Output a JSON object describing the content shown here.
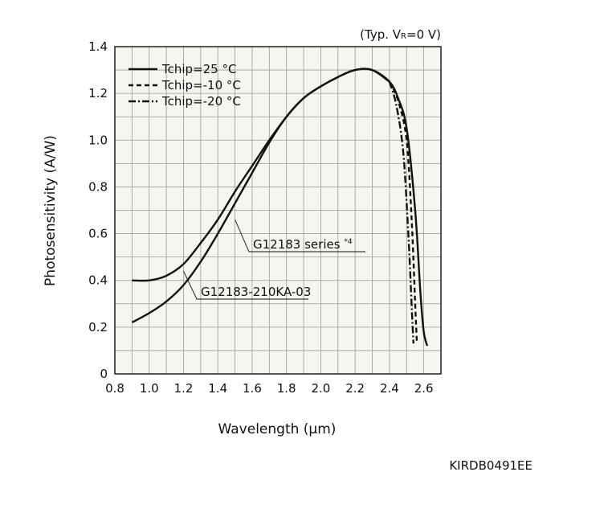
{
  "chart_data": {
    "type": "line",
    "condition": "(Typ. V",
    "condition_sub": "R",
    "condition_tail": "=0 V)",
    "xlabel": "Wavelength (µm)",
    "ylabel": "Photosensitivity (A/W)",
    "xlim": [
      0.8,
      2.7
    ],
    "ylim": [
      0,
      1.4
    ],
    "xticks": [
      "0.8",
      "1.0",
      "1.2",
      "1.4",
      "1.6",
      "1.8",
      "2.0",
      "2.2",
      "2.4",
      "2.6"
    ],
    "yticks": [
      "0",
      "0.2",
      "0.4",
      "0.6",
      "0.8",
      "1.0",
      "1.2",
      "1.4"
    ],
    "grid": true,
    "legend_position": "top-left",
    "legend": [
      {
        "label": "Tchip=25 °C",
        "style": "solid"
      },
      {
        "label": "Tchip=-10 °C",
        "style": "dashed"
      },
      {
        "label": "Tchip=-20 °C",
        "style": "dashdot"
      }
    ],
    "series": [
      {
        "name": "G12183 series",
        "superscript": "*4",
        "temperature": "Tchip=25 °C",
        "style": "solid",
        "x": [
          0.9,
          1.0,
          1.1,
          1.2,
          1.3,
          1.4,
          1.5,
          1.6,
          1.7,
          1.8,
          1.9,
          2.0,
          2.1,
          2.2,
          2.3,
          2.4,
          2.45,
          2.5,
          2.55,
          2.58,
          2.6,
          2.62
        ],
        "y": [
          0.4,
          0.4,
          0.42,
          0.47,
          0.56,
          0.66,
          0.78,
          0.89,
          1.0,
          1.1,
          1.18,
          1.23,
          1.27,
          1.3,
          1.3,
          1.25,
          1.18,
          1.05,
          0.7,
          0.35,
          0.18,
          0.12
        ]
      },
      {
        "name": "G12183-210KA-03",
        "temperature": "Tchip=25 °C",
        "style": "solid",
        "x": [
          0.9,
          1.0,
          1.1,
          1.2,
          1.3,
          1.4,
          1.5,
          1.6,
          1.7,
          1.8,
          1.9,
          2.0,
          2.1,
          2.2,
          2.3,
          2.4
        ],
        "y": [
          0.22,
          0.26,
          0.31,
          0.38,
          0.48,
          0.6,
          0.73,
          0.86,
          0.99,
          1.1,
          1.18,
          1.23,
          1.27,
          1.3,
          1.3,
          1.25
        ]
      },
      {
        "name": "",
        "temperature": "Tchip=-10 °C",
        "style": "dashed",
        "x": [
          2.4,
          2.45,
          2.5,
          2.53,
          2.55,
          2.56
        ],
        "y": [
          1.25,
          1.17,
          1.0,
          0.65,
          0.3,
          0.13
        ]
      },
      {
        "name": "",
        "temperature": "Tchip=-20 °C",
        "style": "dashdot",
        "x": [
          2.4,
          2.44,
          2.48,
          2.51,
          2.53,
          2.54
        ],
        "y": [
          1.25,
          1.15,
          0.95,
          0.6,
          0.28,
          0.13
        ]
      }
    ],
    "annotations": [
      {
        "text": "G12183 series",
        "superscript": "*4",
        "points_to_x": 1.5,
        "points_to_y": 0.66
      },
      {
        "text": "G12183-210KA-03",
        "points_to_x": 1.2,
        "points_to_y": 0.44
      }
    ]
  },
  "figure_code": "KIRDB0491EE"
}
